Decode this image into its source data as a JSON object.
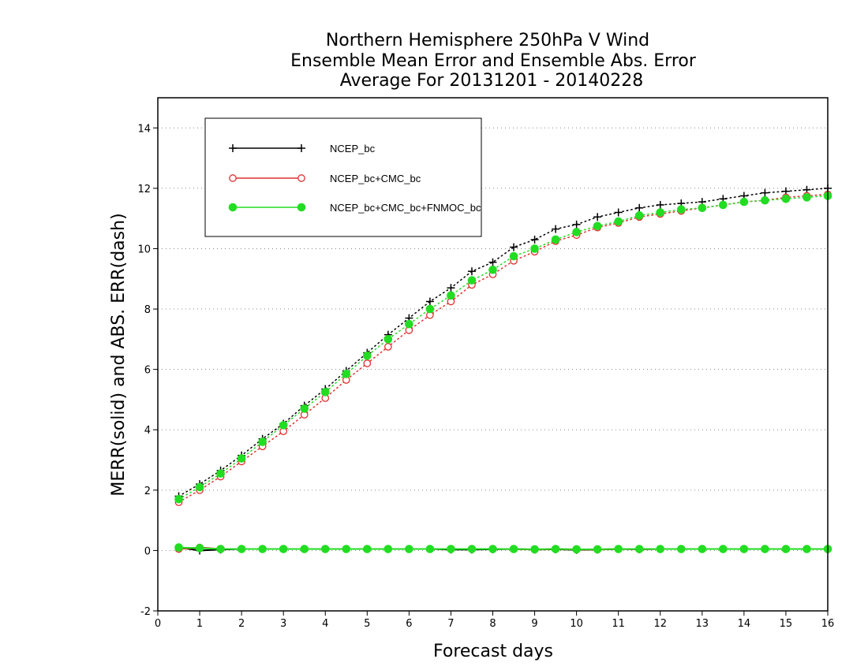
{
  "chart_data": {
    "type": "line",
    "title_lines": [
      "Northern Hemisphere 250hPa V Wind",
      "Ensemble Mean Error and Ensemble Abs. Error",
      "Average For 20131201 - 20140228"
    ],
    "xlabel": "Forecast days",
    "ylabel": "MERR(solid) and ABS. ERR(dash)",
    "xlim": [
      0,
      16
    ],
    "ylim": [
      -2,
      15
    ],
    "xticks": [
      0,
      1,
      2,
      3,
      4,
      5,
      6,
      7,
      8,
      9,
      10,
      11,
      12,
      13,
      14,
      15,
      16
    ],
    "yticks": [
      -2,
      0,
      2,
      4,
      6,
      8,
      10,
      12,
      14
    ],
    "grid": "horizontal-dotted",
    "legend_position": "top-left",
    "x": [
      0.5,
      1,
      1.5,
      2,
      2.5,
      3,
      3.5,
      4,
      4.5,
      5,
      5.5,
      6,
      6.5,
      7,
      7.5,
      8,
      8.5,
      9,
      9.5,
      10,
      10.5,
      11,
      11.5,
      12,
      12.5,
      13,
      13.5,
      14,
      14.5,
      15,
      15.5,
      16
    ],
    "series": [
      {
        "name": "NCEP_bc",
        "color": "#000000",
        "marker": "plus",
        "abs_err": [
          1.8,
          2.2,
          2.65,
          3.15,
          3.7,
          4.2,
          4.8,
          5.35,
          5.95,
          6.55,
          7.15,
          7.7,
          8.25,
          8.7,
          9.25,
          9.55,
          10.05,
          10.3,
          10.65,
          10.8,
          11.05,
          11.2,
          11.35,
          11.45,
          11.5,
          11.55,
          11.65,
          11.75,
          11.85,
          11.9,
          11.95,
          12.0
        ],
        "mean_err": [
          0.1,
          0.0,
          0.03,
          0.05,
          0.05,
          0.05,
          0.05,
          0.05,
          0.05,
          0.05,
          0.05,
          0.05,
          0.05,
          0.03,
          0.03,
          0.04,
          0.05,
          0.03,
          0.04,
          0.02,
          0.03,
          0.05,
          0.04,
          0.05,
          0.05,
          0.05,
          0.05,
          0.05,
          0.05,
          0.05,
          0.05,
          0.05
        ]
      },
      {
        "name": "NCEP_bc+CMC_bc",
        "color": "#e03030",
        "marker": "open-circle",
        "abs_err": [
          1.6,
          2.0,
          2.45,
          2.95,
          3.45,
          3.95,
          4.5,
          5.05,
          5.65,
          6.2,
          6.75,
          7.3,
          7.8,
          8.25,
          8.8,
          9.15,
          9.6,
          9.9,
          10.25,
          10.45,
          10.7,
          10.85,
          11.05,
          11.15,
          11.25,
          11.35,
          11.45,
          11.55,
          11.6,
          11.7,
          11.75,
          11.8
        ],
        "mean_err": [
          0.05,
          0.1,
          0.05,
          0.05,
          0.05,
          0.05,
          0.05,
          0.05,
          0.05,
          0.05,
          0.05,
          0.05,
          0.05,
          0.05,
          0.05,
          0.05,
          0.05,
          0.03,
          0.05,
          0.03,
          0.03,
          0.05,
          0.04,
          0.05,
          0.05,
          0.05,
          0.05,
          0.05,
          0.05,
          0.05,
          0.05,
          0.05
        ]
      },
      {
        "name": "NCEP_bc+CMC_bc+FNMOC_bc",
        "color": "#22dd22",
        "marker": "filled-circle",
        "abs_err": [
          1.7,
          2.1,
          2.55,
          3.05,
          3.6,
          4.15,
          4.7,
          5.25,
          5.85,
          6.45,
          7.0,
          7.5,
          8.0,
          8.45,
          8.95,
          9.3,
          9.75,
          10.0,
          10.3,
          10.55,
          10.75,
          10.9,
          11.1,
          11.2,
          11.3,
          11.35,
          11.45,
          11.55,
          11.6,
          11.65,
          11.7,
          11.75
        ],
        "mean_err": [
          0.1,
          0.08,
          0.05,
          0.05,
          0.05,
          0.05,
          0.05,
          0.05,
          0.05,
          0.05,
          0.05,
          0.05,
          0.05,
          0.05,
          0.05,
          0.05,
          0.05,
          0.04,
          0.05,
          0.04,
          0.04,
          0.05,
          0.05,
          0.05,
          0.05,
          0.05,
          0.05,
          0.05,
          0.05,
          0.05,
          0.05,
          0.05
        ]
      }
    ]
  }
}
